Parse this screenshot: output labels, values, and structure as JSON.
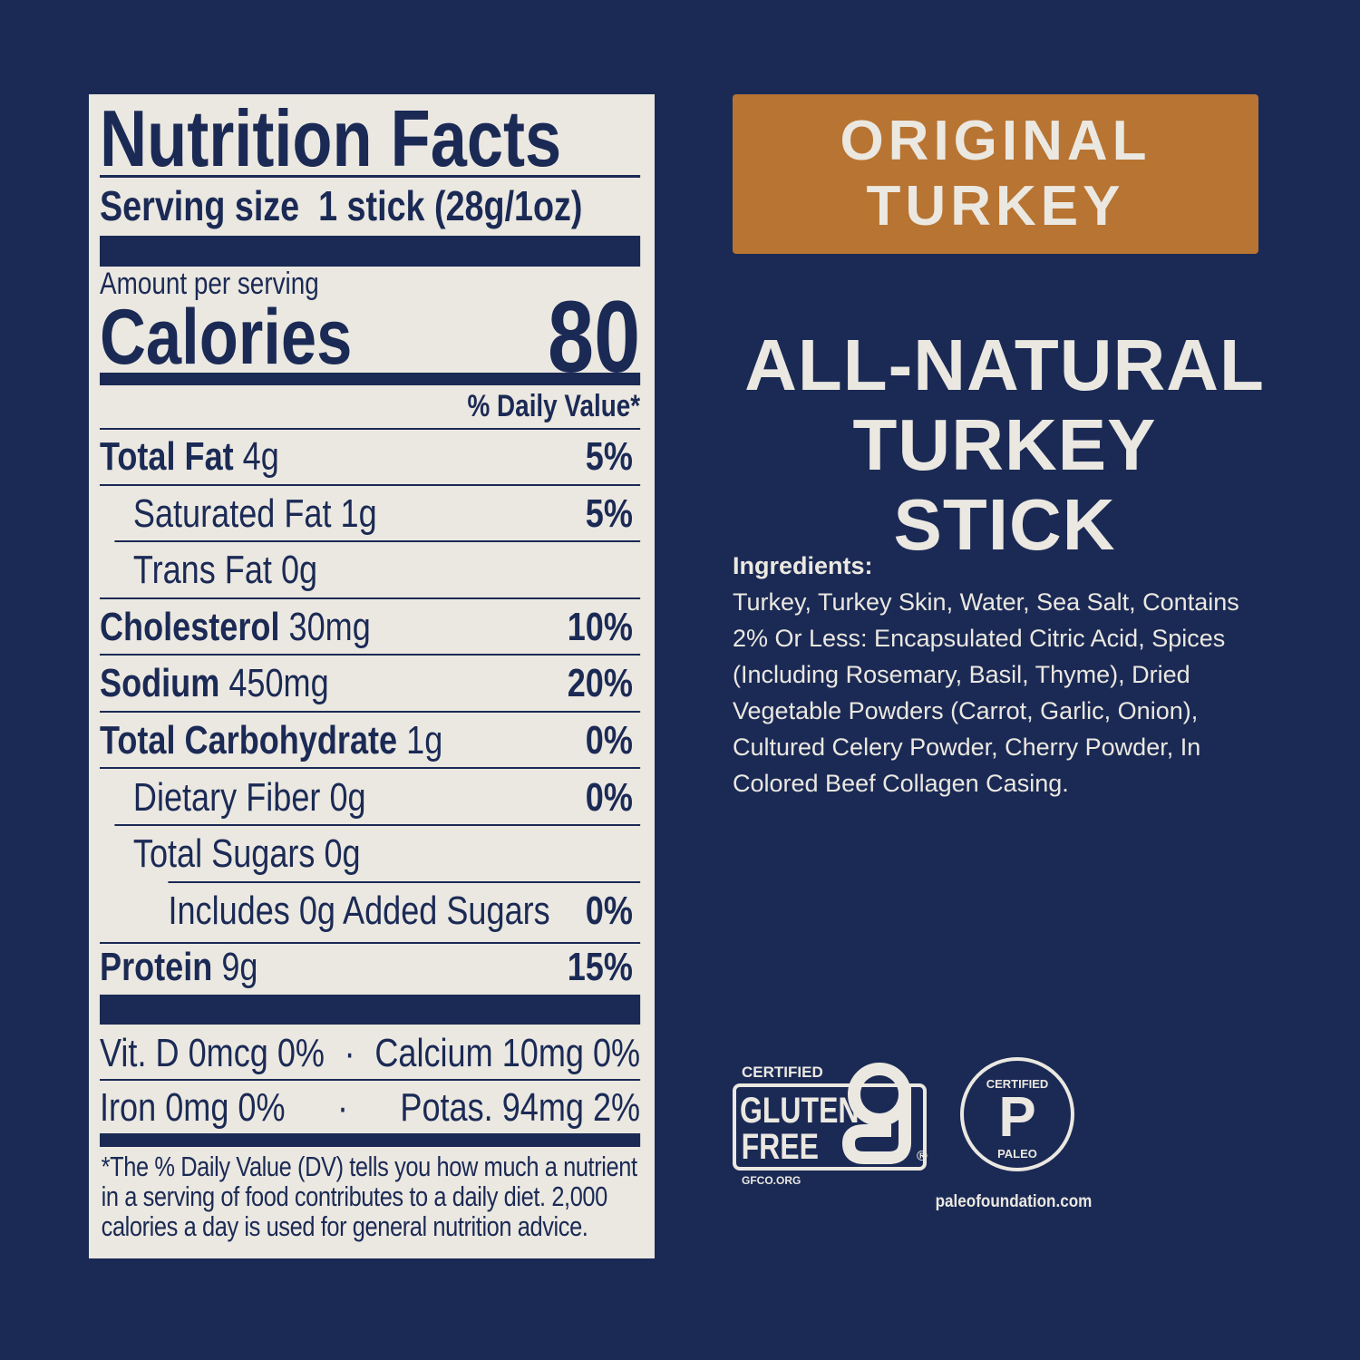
{
  "nutrition": {
    "title": "Nutrition Facts",
    "serving_label": "Serving size",
    "serving_value": "1 stick (28g/1oz)",
    "amount_per_serving": "Amount per serving",
    "calories_label": "Calories",
    "calories_value": "80",
    "dv_header": "% Daily Value*",
    "rows": [
      {
        "label": "Total Fat",
        "amount": "4g",
        "dv": "5%"
      },
      {
        "label": "Saturated Fat",
        "amount": "1g",
        "dv": "5%"
      },
      {
        "label": "Trans Fat",
        "amount": "0g",
        "dv": ""
      },
      {
        "label": "Cholesterol",
        "amount": "30mg",
        "dv": "10%"
      },
      {
        "label": "Sodium",
        "amount": "450mg",
        "dv": "20%"
      },
      {
        "label": "Total Carbohydrate",
        "amount": "1g",
        "dv": "0%"
      },
      {
        "label": "Dietary Fiber",
        "amount": "0g",
        "dv": "0%"
      },
      {
        "label": "Total Sugars",
        "amount": "0g",
        "dv": ""
      },
      {
        "label": "Includes 0g Added Sugars",
        "amount": "",
        "dv": "0%"
      },
      {
        "label": "Protein",
        "amount": "9g",
        "dv": "15%"
      }
    ],
    "vitamins": [
      [
        "Vit. D 0mcg 0%",
        "Calcium 10mg 0%"
      ],
      [
        "Iron 0mg 0%",
        "Potas. 94mg 2%"
      ]
    ],
    "separator": "·",
    "footnote": "*The % Daily Value (DV) tells you how much a nutrient in a serving of food contributes to a daily diet. 2,000 calories a day is used for general nutrition advice."
  },
  "flavor": {
    "line1": "ORIGINAL",
    "line2": "TURKEY"
  },
  "headline": {
    "line1": "ALL-NATURAL",
    "line2": "TURKEY STICK"
  },
  "ingredients": {
    "label": "Ingredients:",
    "text": "Turkey, Turkey Skin, Water, Sea Salt, Contains 2% Or Less: Encapsulated Citric Acid, Spices (Including Rosemary, Basil, Thyme), Dried Vegetable Powders (Carrot, Garlic, Onion), Cultured Celery Powder, Cherry Powder, In Colored Beef Collagen Casing."
  },
  "badges": {
    "gluten_free": {
      "top": "CERTIFIED",
      "line1": "GLUTEN",
      "line2": "FREE",
      "site": "GFCO.ORG",
      "mark": "®"
    },
    "paleo": {
      "top": "CERTIFIED",
      "letter": "P",
      "bottom": "PALEO",
      "site": "paleofoundation.com"
    }
  },
  "colors": {
    "background": "#1b2a55",
    "panel": "#ebe8e1",
    "accent": "#b87432"
  }
}
